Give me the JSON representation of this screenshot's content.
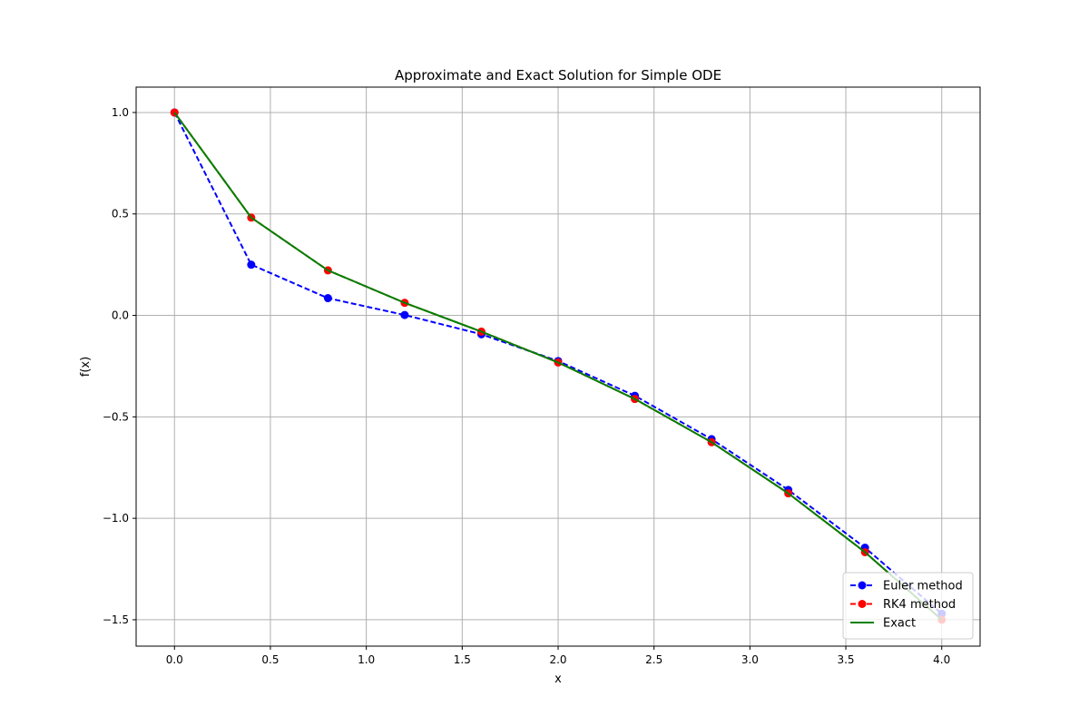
{
  "chart_data": {
    "type": "line",
    "title": "Approximate and Exact Solution for Simple ODE",
    "xlabel": "x",
    "ylabel": "f(x)",
    "xlim": [
      -0.2,
      4.2
    ],
    "ylim": [
      -1.63,
      1.125
    ],
    "grid": true,
    "legend_position": "lower right",
    "x_ticks": [
      0.0,
      0.5,
      1.0,
      1.5,
      2.0,
      2.5,
      3.0,
      3.5,
      4.0
    ],
    "x_tick_labels": [
      "0.0",
      "0.5",
      "1.0",
      "1.5",
      "2.0",
      "2.5",
      "3.0",
      "3.5",
      "4.0"
    ],
    "y_ticks": [
      1.0,
      0.5,
      0.0,
      -0.5,
      -1.0,
      -1.5
    ],
    "y_tick_labels": [
      "1.0",
      "0.5",
      "0.0",
      "−0.5",
      "−1.0",
      "−1.5"
    ],
    "x": [
      0.0,
      0.4,
      0.8,
      1.2,
      1.6,
      2.0,
      2.4,
      2.8,
      3.2,
      3.6,
      4.0
    ],
    "series": [
      {
        "name": "Euler method",
        "color": "#0000ff",
        "style": "dashed",
        "marker": "circle",
        "values": [
          1.0,
          0.25,
          0.085,
          0.002,
          -0.093,
          -0.225,
          -0.396,
          -0.61,
          -0.86,
          -1.145,
          -1.47
        ]
      },
      {
        "name": "RK4 method",
        "color": "#ff0000",
        "style": "dashed",
        "marker": "circle",
        "values": [
          1.0,
          0.482,
          0.222,
          0.062,
          -0.08,
          -0.232,
          -0.412,
          -0.625,
          -0.877,
          -1.167,
          -1.5
        ]
      },
      {
        "name": "Exact",
        "color": "#008000",
        "style": "solid",
        "marker": "none",
        "values": [
          1.0,
          0.482,
          0.222,
          0.062,
          -0.08,
          -0.232,
          -0.412,
          -0.625,
          -0.877,
          -1.167,
          -1.5
        ]
      }
    ]
  }
}
